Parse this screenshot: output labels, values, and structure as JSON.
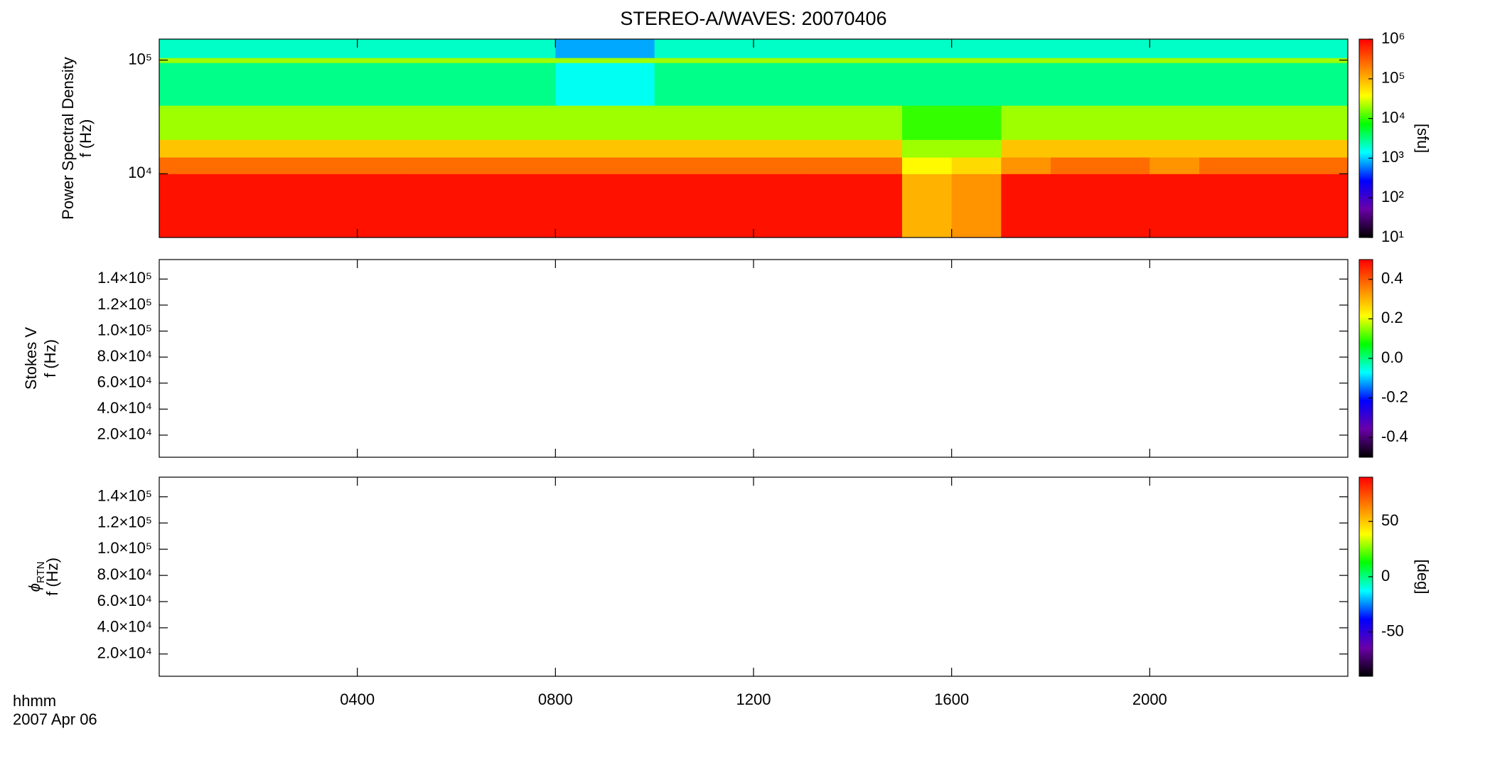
{
  "title": "STEREO-A/WAVES: 20070406",
  "footer": {
    "units": "hhmm",
    "date": "2007 Apr 06"
  },
  "chart_data": [
    {
      "type": "heatmap",
      "ylabel": [
        "Power Spectral Density",
        "f (Hz)"
      ],
      "ylog": true,
      "ylim": [
        2750,
        153000
      ],
      "yticks": [
        {
          "value": 10000,
          "label": "10⁴"
        },
        {
          "value": 100000,
          "label": "10⁵"
        }
      ],
      "xbins": [
        0,
        1,
        2,
        3,
        4,
        5,
        6,
        7,
        8,
        9,
        10,
        11,
        12,
        13,
        14,
        15,
        16,
        17,
        18,
        19,
        20,
        21,
        22,
        23,
        24
      ],
      "ybins": [
        2750,
        10000,
        14000,
        20000,
        40000,
        95000,
        105000,
        153000
      ],
      "z": [
        [
          800000,
          800000,
          800000,
          800000,
          800000,
          800000,
          800000,
          800000,
          800000,
          800000,
          800000,
          800000,
          800000,
          800000,
          800000,
          100000,
          150000,
          800000,
          800000,
          800000,
          800000,
          800000,
          800000,
          800000
        ],
        [
          250000,
          250000,
          250000,
          250000,
          250000,
          250000,
          250000,
          250000,
          250000,
          250000,
          250000,
          250000,
          250000,
          250000,
          250000,
          40000,
          60000,
          150000,
          250000,
          250000,
          150000,
          250000,
          250000,
          250000
        ],
        [
          80000,
          80000,
          80000,
          80000,
          80000,
          80000,
          80000,
          80000,
          80000,
          80000,
          80000,
          80000,
          80000,
          80000,
          80000,
          20000,
          20000,
          80000,
          80000,
          80000,
          80000,
          80000,
          80000,
          80000
        ],
        [
          20000,
          20000,
          20000,
          20000,
          20000,
          20000,
          20000,
          20000,
          20000,
          20000,
          20000,
          20000,
          20000,
          20000,
          20000,
          10000,
          10000,
          20000,
          20000,
          20000,
          20000,
          20000,
          20000,
          20000
        ],
        [
          3000,
          3000,
          3000,
          3000,
          3000,
          3000,
          3000,
          3000,
          1500,
          1500,
          3000,
          3000,
          3000,
          3000,
          3000,
          3000,
          3000,
          3000,
          3000,
          3000,
          3000,
          3000,
          3000,
          3000
        ],
        [
          20000,
          20000,
          20000,
          20000,
          20000,
          20000,
          20000,
          20000,
          20000,
          20000,
          20000,
          20000,
          20000,
          20000,
          20000,
          20000,
          20000,
          20000,
          20000,
          20000,
          20000,
          20000,
          20000,
          20000
        ],
        [
          2000,
          2000,
          2000,
          2000,
          2000,
          2000,
          2000,
          2000,
          800,
          800,
          2000,
          2000,
          2000,
          2000,
          2000,
          2000,
          2000,
          2000,
          2000,
          2000,
          2000,
          2000,
          2000,
          2000
        ]
      ],
      "colorbar": {
        "zlim": [
          10,
          1000000
        ],
        "log": true,
        "label": "[sfu]",
        "ticks": [
          {
            "value": 10,
            "label": "10¹"
          },
          {
            "value": 100,
            "label": "10²"
          },
          {
            "value": 1000,
            "label": "10³"
          },
          {
            "value": 10000,
            "label": "10⁴"
          },
          {
            "value": 100000,
            "label": "10⁵"
          },
          {
            "value": 1000000,
            "label": "10⁶"
          }
        ]
      }
    },
    {
      "type": "heatmap",
      "ylabel": [
        "Stokes V",
        "f (Hz)"
      ],
      "ylim": [
        3000,
        155000
      ],
      "yticks": [
        {
          "value": 20000,
          "label": "2.0×10⁴"
        },
        {
          "value": 40000,
          "label": "4.0×10⁴"
        },
        {
          "value": 60000,
          "label": "6.0×10⁴"
        },
        {
          "value": 80000,
          "label": "8.0×10⁴"
        },
        {
          "value": 100000,
          "label": "1.0×10⁵"
        },
        {
          "value": 120000,
          "label": "1.2×10⁵"
        },
        {
          "value": 140000,
          "label": "1.4×10⁵"
        }
      ],
      "colorbar": {
        "zlim": [
          -0.5,
          0.5
        ],
        "ticks": [
          -0.4,
          -0.2,
          {
            "value": 0,
            "label": "0.0"
          },
          0.2,
          0.4
        ]
      }
    },
    {
      "type": "heatmap",
      "ylabel": [
        "ϕ",
        "RTN",
        "f (Hz)"
      ],
      "ylim": [
        3000,
        155000
      ],
      "yticks": [
        {
          "value": 20000,
          "label": "2.0×10⁴"
        },
        {
          "value": 40000,
          "label": "4.0×10⁴"
        },
        {
          "value": 60000,
          "label": "6.0×10⁴"
        },
        {
          "value": 80000,
          "label": "8.0×10⁴"
        },
        {
          "value": 100000,
          "label": "1.0×10⁵"
        },
        {
          "value": 120000,
          "label": "1.2×10⁵"
        },
        {
          "value": 140000,
          "label": "1.4×10⁵"
        }
      ],
      "xlim": [
        0,
        24
      ],
      "xticks": [
        {
          "value": 4,
          "label": "0400"
        },
        {
          "value": 8,
          "label": "0800"
        },
        {
          "value": 12,
          "label": "1200"
        },
        {
          "value": 16,
          "label": "1600"
        },
        {
          "value": 20,
          "label": "2000"
        }
      ],
      "colorbar": {
        "zlim": [
          -90,
          90
        ],
        "label": "[deg]",
        "ticks": [
          -50,
          0,
          50
        ]
      }
    }
  ],
  "colorscale": [
    "#000000",
    "#6a00a8",
    "#0000ff",
    "#00ffff",
    "#00ff00",
    "#ffff00",
    "#ff8000",
    "#ff0000"
  ]
}
